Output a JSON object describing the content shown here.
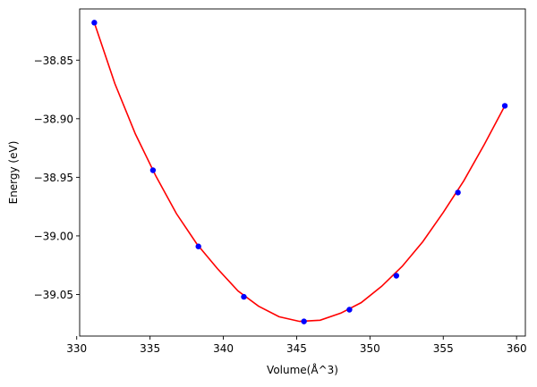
{
  "chart_data": {
    "type": "scatter",
    "title": "",
    "xlabel": "Volume(Å^3)",
    "ylabel": "Energy (eV)",
    "xlim": [
      330.2,
      360.6
    ],
    "ylim": [
      -39.0855,
      -38.8063
    ],
    "x_ticks": [
      330,
      335,
      340,
      345,
      350,
      355,
      360
    ],
    "x_tick_labels": [
      "330",
      "335",
      "340",
      "345",
      "350",
      "355",
      "360"
    ],
    "y_ticks": [
      -38.85,
      -38.9,
      -38.95,
      -39.0,
      -39.05
    ],
    "y_tick_labels": [
      "−38.85",
      "−38.90",
      "−38.95",
      "−39.00",
      "−39.05"
    ],
    "grid": false,
    "series": [
      {
        "kind": "points",
        "color": "#0000ff",
        "x": [
          331.2,
          335.2,
          338.3,
          341.4,
          345.5,
          348.6,
          351.8,
          356.0,
          359.2
        ],
        "y": [
          -38.818,
          -38.944,
          -39.009,
          -39.052,
          -39.073,
          -39.063,
          -39.034,
          -38.963,
          -38.889
        ]
      },
      {
        "kind": "fit-curve",
        "color": "#ff0000",
        "x": [
          331.2,
          332.6,
          334.0,
          335.4,
          336.8,
          338.2,
          339.6,
          341.0,
          342.4,
          343.8,
          345.2,
          346.6,
          348.0,
          349.4,
          350.8,
          352.2,
          353.6,
          355.0,
          356.4,
          357.8,
          359.2
        ],
        "y": [
          -38.818,
          -38.87,
          -38.913,
          -38.949,
          -38.981,
          -39.007,
          -39.028,
          -39.047,
          -39.06,
          -39.069,
          -39.073,
          -39.072,
          -39.066,
          -39.057,
          -39.043,
          -39.026,
          -39.005,
          -38.98,
          -38.953,
          -38.922,
          -38.889
        ]
      }
    ]
  }
}
